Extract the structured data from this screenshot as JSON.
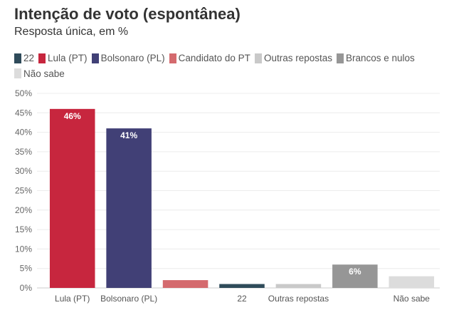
{
  "chart_data": {
    "type": "bar",
    "title": "Intenção de voto (espontânea)",
    "subtitle": "Resposta única, em %",
    "ylim": [
      0,
      50
    ],
    "y_ticks": [
      "0%",
      "5%",
      "10%",
      "15%",
      "20%",
      "25%",
      "30%",
      "35%",
      "40%",
      "45%",
      "50%"
    ],
    "grid": true,
    "legend_position": "top",
    "categories": [
      "Lula (PT)",
      "Bolsonaro (PL)",
      "Candidato do PT",
      "22",
      "Outras repostas",
      "Brancos e nulos",
      "Não sabe"
    ],
    "x_tick_labels": [
      "Lula (PT)",
      "Bolsonaro (PL)",
      "",
      "22",
      "Outras repostas",
      "",
      "Não sabe"
    ],
    "series": [
      {
        "name": "22",
        "color": "#2f4b5a"
      },
      {
        "name": "Lula (PT)",
        "color": "#c7263e"
      },
      {
        "name": "Bolsonaro (PL)",
        "color": "#414076"
      },
      {
        "name": "Candidato do PT",
        "color": "#d46a6e"
      },
      {
        "name": "Outras repostas",
        "color": "#c9c9c9"
      },
      {
        "name": "Brancos e nulos",
        "color": "#969696"
      },
      {
        "name": "Não sabe",
        "color": "#dcdcdc"
      }
    ],
    "values": [
      46,
      41,
      2,
      1,
      1,
      6,
      3
    ],
    "bar_colors": [
      "#c7263e",
      "#414076",
      "#d46a6e",
      "#2f4b5a",
      "#c9c9c9",
      "#969696",
      "#dcdcdc"
    ],
    "data_labels": [
      "46%",
      "41%",
      "",
      "",
      "",
      "6%",
      ""
    ]
  }
}
